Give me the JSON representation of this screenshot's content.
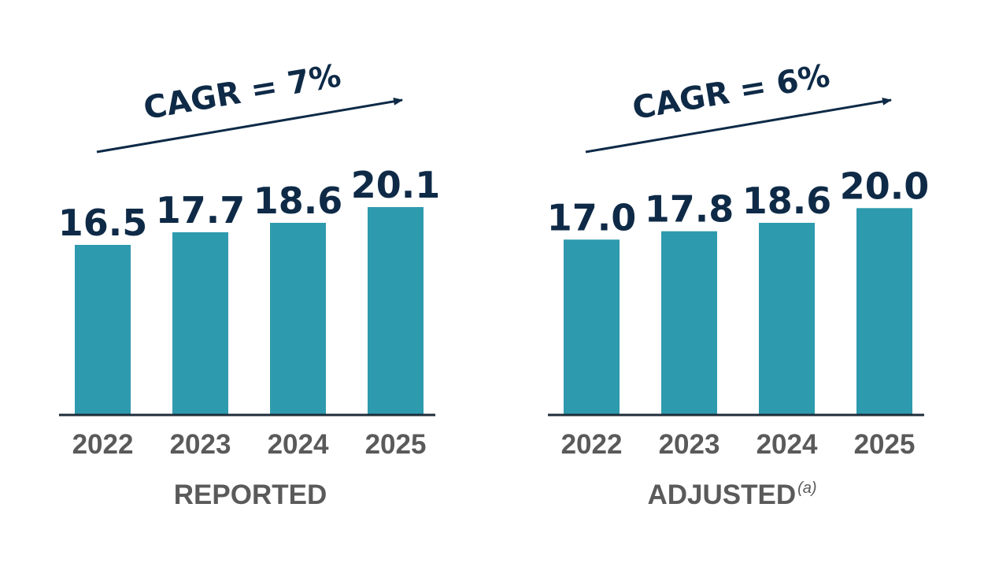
{
  "colors": {
    "bar": "#2E9AAE",
    "value_label": "#0E2A47",
    "axis_text": "#5A5A5A",
    "baseline": "#1F2D3A",
    "cagr": "#0E2A47"
  },
  "chart_data": [
    {
      "type": "bar",
      "group_label": "REPORTED",
      "superscript": "",
      "cagr_label": "CAGR = 7%",
      "categories": [
        "2022",
        "2023",
        "2024",
        "2025"
      ],
      "values": [
        16.5,
        17.7,
        18.6,
        20.1
      ],
      "value_labels": [
        "16.5",
        "17.7",
        "18.6",
        "20.1"
      ]
    },
    {
      "type": "bar",
      "group_label": "ADJUSTED",
      "superscript": "(a)",
      "cagr_label": "CAGR = 6%",
      "categories": [
        "2022",
        "2023",
        "2024",
        "2025"
      ],
      "values": [
        17.0,
        17.8,
        18.6,
        20.0
      ],
      "value_labels": [
        "17.0",
        "17.8",
        "18.6",
        "20.0"
      ]
    }
  ]
}
